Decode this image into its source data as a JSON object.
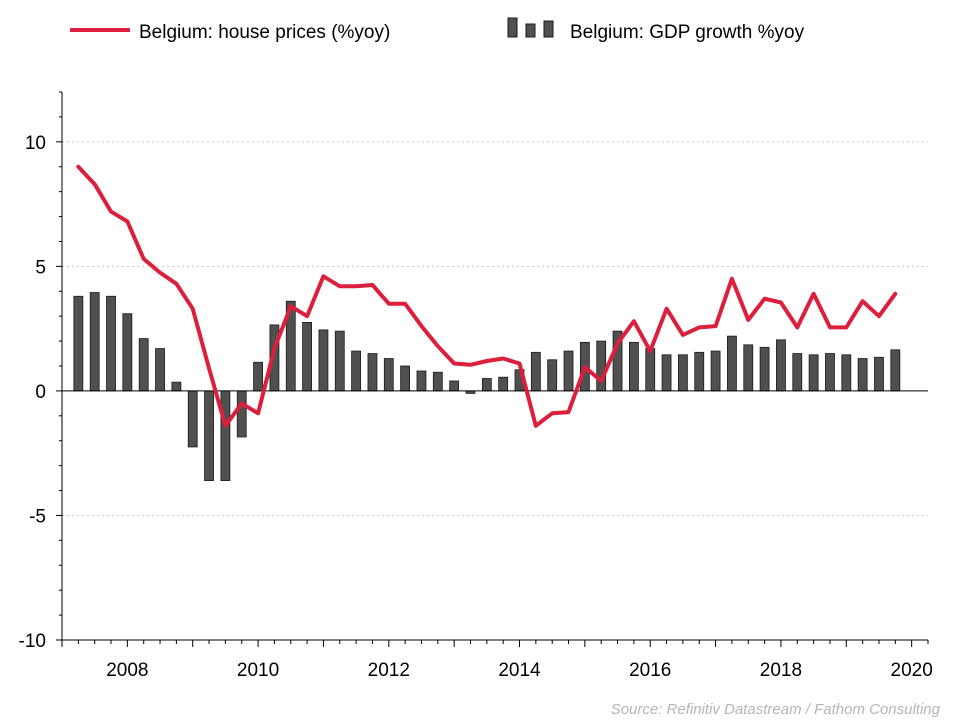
{
  "chart_data": {
    "type": "bar+line",
    "source": "Source: Refinitiv Datastream / Fathom Consulting",
    "legend": {
      "position": "top",
      "line_label": "Belgium: house prices (%yoy)",
      "bar_label": "Belgium: GDP growth %yoy"
    },
    "y_axis": {
      "min": -10,
      "max": 12,
      "ticks": [
        -10,
        -5,
        0,
        5,
        10
      ],
      "grid": true
    },
    "x_axis": {
      "min": 2007,
      "max": 2020.25,
      "ticks": [
        2008,
        2010,
        2012,
        2014,
        2016,
        2018,
        2020
      ]
    },
    "colors": {
      "line": "#dc1f3c",
      "bars": "#505050",
      "bar_outline": "#1a1a1a",
      "grid": "#c8c8c8",
      "axis": "#000000"
    },
    "series": [
      {
        "name": "Belgium: GDP growth %yoy",
        "kind": "bar",
        "x": [
          2007.25,
          2007.5,
          2007.75,
          2008,
          2008.25,
          2008.5,
          2008.75,
          2009,
          2009.25,
          2009.5,
          2009.75,
          2010,
          2010.25,
          2010.5,
          2010.75,
          2011,
          2011.25,
          2011.5,
          2011.75,
          2012,
          2012.25,
          2012.5,
          2012.75,
          2013,
          2013.25,
          2013.5,
          2013.75,
          2014,
          2014.25,
          2014.5,
          2014.75,
          2015,
          2015.25,
          2015.5,
          2015.75,
          2016,
          2016.25,
          2016.5,
          2016.75,
          2017,
          2017.25,
          2017.5,
          2017.75,
          2018,
          2018.25,
          2018.5,
          2018.75,
          2019,
          2019.25,
          2019.5,
          2019.75
        ],
        "values": [
          3.8,
          3.95,
          3.8,
          3.1,
          2.1,
          1.7,
          0.35,
          -2.25,
          -3.6,
          -3.6,
          -1.85,
          1.15,
          2.65,
          3.6,
          2.75,
          2.45,
          2.4,
          1.6,
          1.5,
          1.3,
          1.0,
          0.8,
          0.75,
          0.4,
          -0.1,
          0.5,
          0.55,
          0.85,
          1.55,
          1.25,
          1.6,
          1.95,
          2.0,
          2.4,
          1.95,
          1.7,
          1.45,
          1.45,
          1.55,
          1.6,
          2.2,
          1.85,
          1.75,
          2.05,
          1.5,
          1.45,
          1.5,
          1.45,
          1.3,
          1.35,
          1.65
        ]
      },
      {
        "name": "Belgium: house prices (%yoy)",
        "kind": "line",
        "x": [
          2007.25,
          2007.5,
          2007.75,
          2008,
          2008.25,
          2008.5,
          2008.75,
          2009,
          2009.25,
          2009.5,
          2009.75,
          2010,
          2010.25,
          2010.5,
          2010.75,
          2011,
          2011.25,
          2011.5,
          2011.75,
          2012,
          2012.25,
          2012.5,
          2012.75,
          2013,
          2013.25,
          2013.5,
          2013.75,
          2014,
          2014.25,
          2014.5,
          2014.75,
          2015,
          2015.25,
          2015.5,
          2015.75,
          2016,
          2016.25,
          2016.5,
          2016.75,
          2017,
          2017.25,
          2017.5,
          2017.75,
          2018,
          2018.25,
          2018.5,
          2018.75,
          2019,
          2019.25,
          2019.5,
          2019.75
        ],
        "values": [
          9.0,
          8.3,
          7.2,
          6.8,
          5.3,
          4.75,
          4.3,
          3.3,
          0.9,
          -1.4,
          -0.5,
          -0.9,
          1.7,
          3.4,
          3.0,
          4.6,
          4.2,
          4.2,
          4.25,
          3.5,
          3.5,
          2.6,
          1.8,
          1.1,
          1.05,
          1.2,
          1.3,
          1.1,
          -1.4,
          -0.9,
          -0.85,
          0.95,
          0.4,
          1.9,
          2.8,
          1.6,
          3.3,
          2.25,
          2.55,
          2.6,
          4.5,
          2.85,
          3.7,
          3.55,
          2.55,
          3.9,
          2.55,
          2.55,
          3.6,
          3.0,
          3.9
        ]
      }
    ]
  }
}
